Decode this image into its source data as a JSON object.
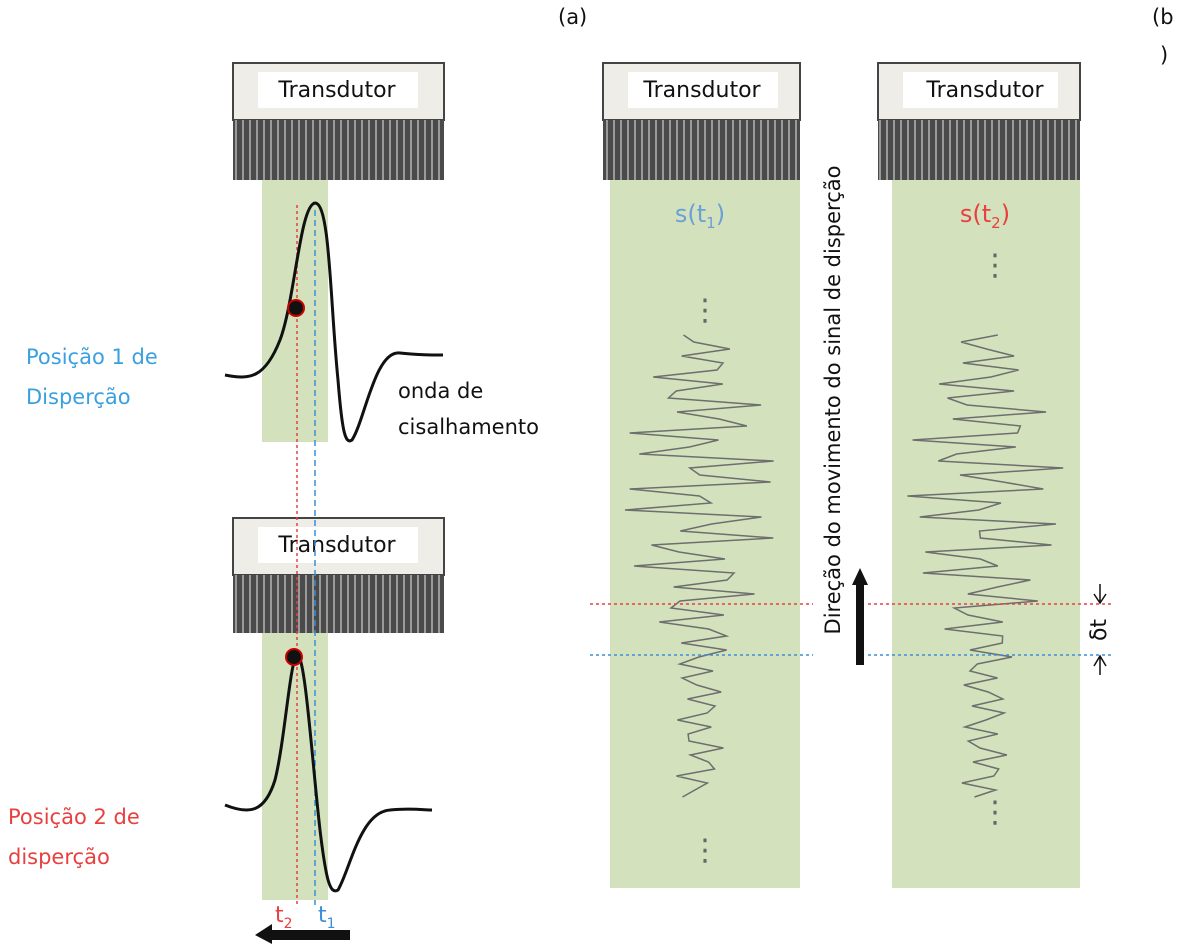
{
  "panel_labels": {
    "a": "(a)",
    "b": [
      "(b",
      ")"
    ]
  },
  "transducers": [
    "Transdutor",
    "Transdutor",
    "Transdutor",
    "Transdutor"
  ],
  "left": {
    "position1": [
      "Posição 1 de",
      "Disperção"
    ],
    "shear_wave": [
      "onda de",
      "cisalhamento"
    ],
    "position2": [
      "Posição 2 de",
      "disperção"
    ],
    "t2": {
      "base": "t",
      "sub": "2"
    },
    "t1": {
      "base": "t",
      "sub": "1"
    }
  },
  "right": {
    "signal1": {
      "base": "s(t",
      "sub": "1",
      "close": ")"
    },
    "signal2": {
      "base": "s(t",
      "sub": "2",
      "close": ")"
    },
    "direction": "Direção do movimento do sinal de disperção",
    "delta": "δt",
    "ellipses": [
      "⋮",
      "⋮",
      "⋮",
      "⋮"
    ]
  }
}
